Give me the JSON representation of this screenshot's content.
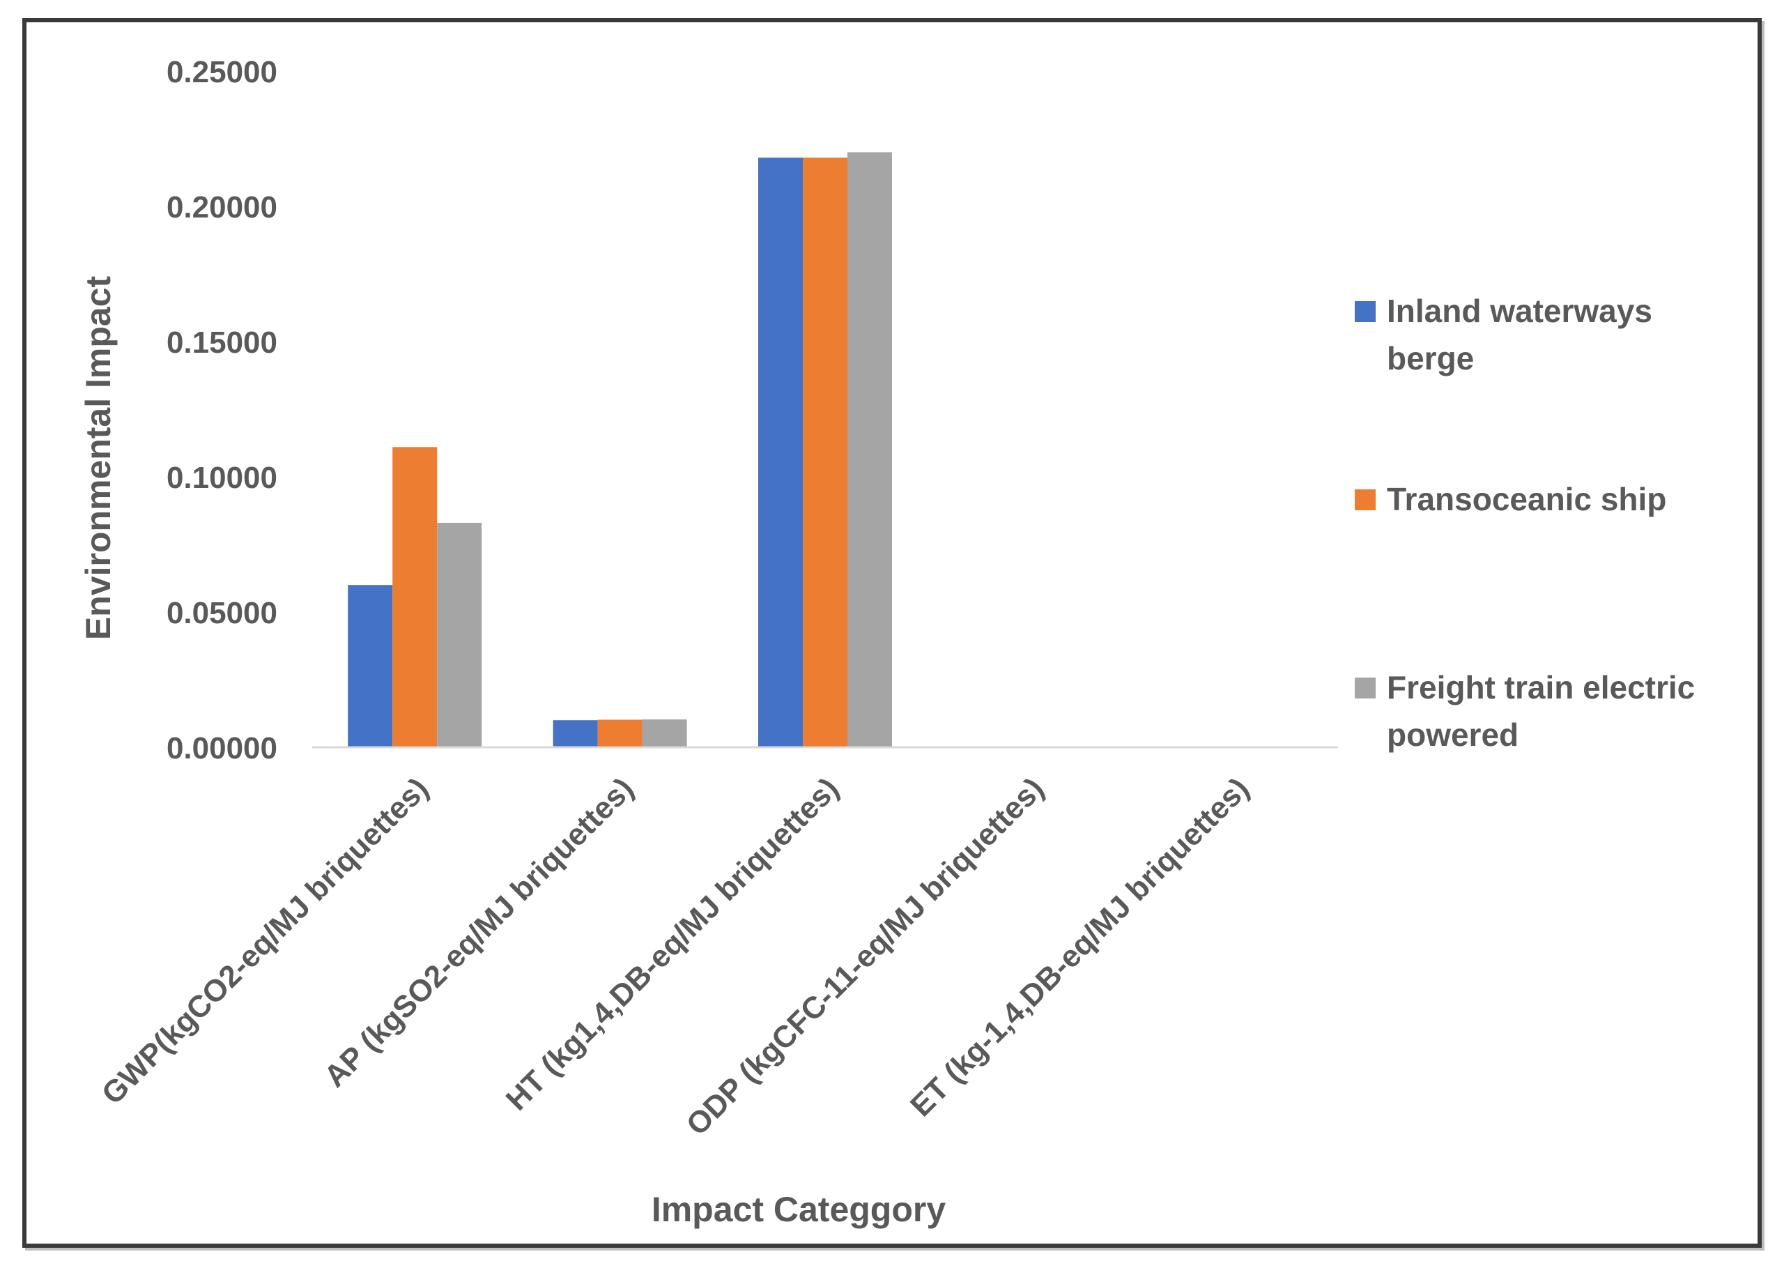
{
  "chart_data": {
    "type": "bar",
    "title": "",
    "xlabel": "Impact Categgory",
    "ylabel": "Environmental Impact",
    "ylim": [
      0,
      0.25
    ],
    "yticks": [
      "0.00000",
      "0.05000",
      "0.10000",
      "0.15000",
      "0.20000",
      "0.25000"
    ],
    "ytick_values": [
      0,
      0.05,
      0.1,
      0.15,
      0.2,
      0.25
    ],
    "categories": [
      "GWP(kgCO2-eq/MJ briquettes)",
      "AP (kgSO2-eq/MJ briquettes)",
      "HT (kg1,4,DB-eq/MJ briquettes)",
      "ODP (kgCFC-11-eq/MJ briquettes)",
      "ET (kg-1,4,DB-eq/MJ briquettes)"
    ],
    "series": [
      {
        "name": "Inland waterways berge",
        "legend_lines": [
          "Inland waterways",
          "berge"
        ],
        "color": "#4472C4",
        "values": [
          0.06,
          0.01,
          0.218,
          0.0,
          0.0
        ]
      },
      {
        "name": "Transoceanic ship",
        "legend_lines": [
          "Transoceanic ship"
        ],
        "color": "#ED7D31",
        "values": [
          0.111,
          0.0102,
          0.218,
          0.0,
          0.0
        ]
      },
      {
        "name": "Freight train electric powered",
        "legend_lines": [
          "Freight train electric",
          "powered"
        ],
        "color": "#A5A5A5",
        "values": [
          0.083,
          0.0103,
          0.22,
          0.0,
          0.0
        ]
      }
    ],
    "grid": false,
    "legend": "right"
  }
}
